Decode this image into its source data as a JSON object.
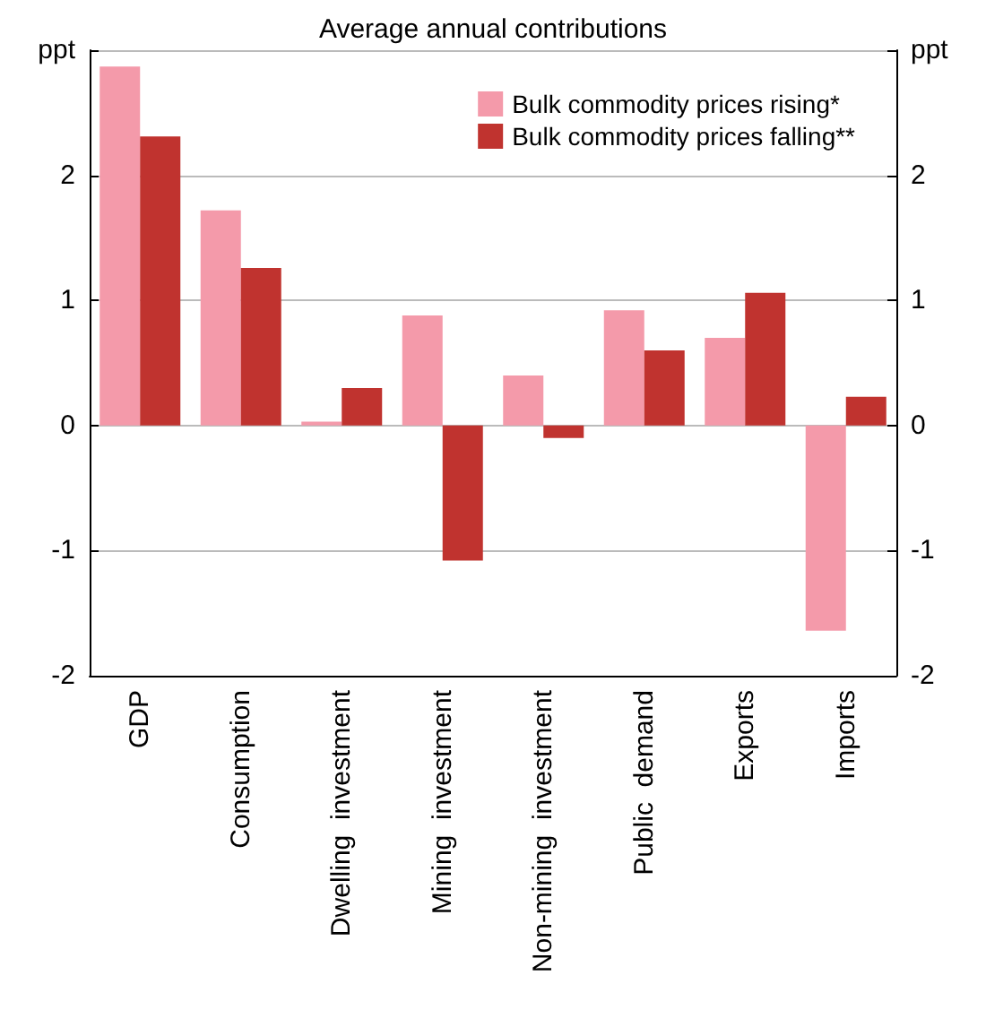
{
  "chart_data": {
    "type": "bar",
    "title": "Average annual contributions",
    "categories": [
      "GDP",
      "Consumption",
      "Dwelling  investment",
      "Mining  investment",
      "Non-mining  investment",
      "Public  demand",
      "Exports",
      "Imports"
    ],
    "series": [
      {
        "name": "Bulk commodity prices rising*",
        "color": "#f49aaa",
        "values": [
          2.87,
          1.72,
          0.03,
          0.88,
          0.4,
          0.92,
          0.7,
          -1.64
        ]
      },
      {
        "name": "Bulk commodity prices falling**",
        "color": "#c0332f",
        "values": [
          2.31,
          1.26,
          0.3,
          -1.08,
          -0.1,
          0.6,
          1.06,
          0.23
        ]
      }
    ],
    "ylim": [
      -2,
      3
    ],
    "yticks": [
      -2,
      -1,
      0,
      1,
      2,
      {
        "value": 3,
        "label": "ppt"
      }
    ],
    "y2lim": [
      -2,
      3
    ],
    "y2ticks": [
      -2,
      -1,
      0,
      1,
      2,
      {
        "value": 3,
        "label": "ppt"
      }
    ],
    "grid": "y",
    "legend": "top right"
  }
}
